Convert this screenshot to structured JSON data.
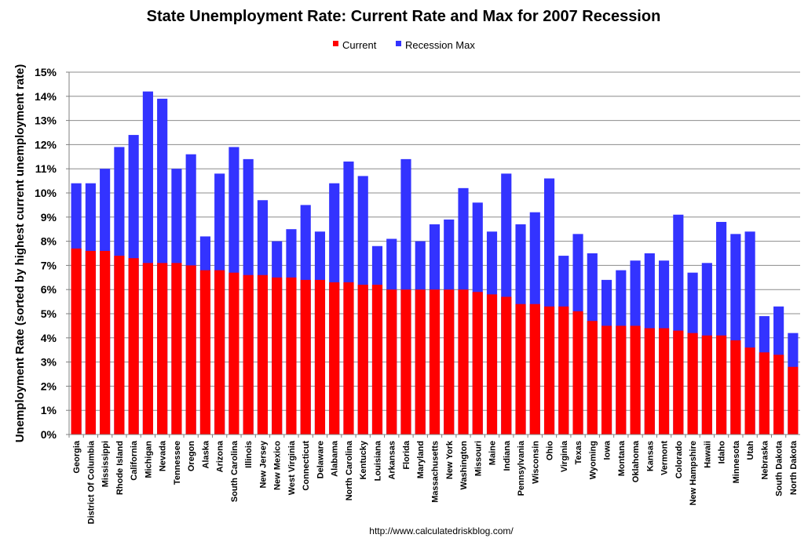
{
  "chart_data": {
    "type": "bar",
    "stacked": "overlay",
    "title": "State Unemployment Rate: Current Rate and Max for 2007 Recession",
    "ylabel": "Unemployment Rate (sorted by highest current unemployment rate)",
    "xlabel": "",
    "ylim": [
      0,
      15
    ],
    "y_ticks": [
      "0%",
      "1%",
      "2%",
      "3%",
      "4%",
      "5%",
      "6%",
      "7%",
      "8%",
      "9%",
      "10%",
      "11%",
      "12%",
      "13%",
      "14%",
      "15%"
    ],
    "grid": true,
    "legend_position": "top-center",
    "categories": [
      "Georgia",
      "District Of Columbia",
      "Mississippi",
      "Rhode Island",
      "California",
      "Michigan",
      "Nevada",
      "Tennessee",
      "Oregon",
      "Alaska",
      "Arizona",
      "South Carolina",
      "Illinois",
      "New Jersey",
      "New Mexico",
      "West Virginia",
      "Connecticut",
      "Delaware",
      "Alabama",
      "North Carolina",
      "Kentucky",
      "Louisiana",
      "Arkansas",
      "Florida",
      "Maryland",
      "Massachusetts",
      "New York",
      "Washington",
      "Missouri",
      "Maine",
      "Indiana",
      "Pennsylvania",
      "Wisconsin",
      "Ohio",
      "Virginia",
      "Texas",
      "Wyoming",
      "Iowa",
      "Montana",
      "Oklahoma",
      "Kansas",
      "Vermont",
      "Colorado",
      "New Hampshire",
      "Hawaii",
      "Idaho",
      "Minnesota",
      "Utah",
      "Nebraska",
      "South Dakota",
      "North Dakota"
    ],
    "series": [
      {
        "name": "Current",
        "color": "#ff0000",
        "values": [
          7.7,
          7.6,
          7.6,
          7.4,
          7.3,
          7.1,
          7.1,
          7.1,
          7.0,
          6.8,
          6.8,
          6.7,
          6.6,
          6.6,
          6.5,
          6.5,
          6.4,
          6.4,
          6.3,
          6.3,
          6.2,
          6.2,
          6.0,
          6.0,
          6.0,
          6.0,
          6.0,
          6.0,
          5.9,
          5.8,
          5.7,
          5.4,
          5.4,
          5.3,
          5.3,
          5.1,
          4.7,
          4.5,
          4.5,
          4.5,
          4.4,
          4.4,
          4.3,
          4.2,
          4.1,
          4.1,
          3.9,
          3.6,
          3.4,
          3.3,
          2.8
        ]
      },
      {
        "name": "Recession Max",
        "color": "#3333ff",
        "values": [
          10.4,
          10.4,
          11.0,
          11.9,
          12.4,
          14.2,
          13.9,
          11.0,
          11.6,
          8.2,
          10.8,
          11.9,
          11.4,
          9.7,
          8.0,
          8.5,
          9.5,
          8.4,
          10.4,
          11.3,
          10.7,
          7.8,
          8.1,
          11.4,
          8.0,
          8.7,
          8.9,
          10.2,
          9.6,
          8.4,
          10.8,
          8.7,
          9.2,
          10.6,
          7.4,
          8.3,
          7.5,
          6.4,
          6.8,
          7.2,
          7.5,
          7.2,
          9.1,
          6.7,
          7.1,
          8.8,
          8.3,
          8.4,
          4.9,
          5.3,
          4.2
        ]
      }
    ],
    "source": "http://www.calculatedriskblog.com/"
  }
}
